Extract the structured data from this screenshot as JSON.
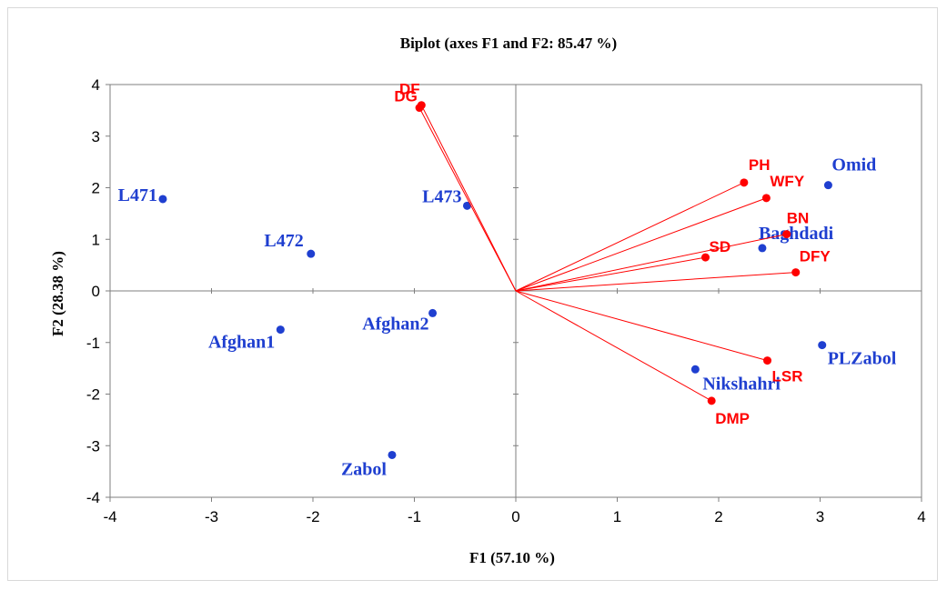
{
  "chart_data": {
    "type": "scatter",
    "title": "Biplot (axes F1 and F2: 85.47 %)",
    "xlabel": "F1 (57.10 %)",
    "ylabel": "F2 (28.38 %)",
    "xlim": [
      -4,
      4
    ],
    "ylim": [
      -4,
      4
    ],
    "x_ticks": [
      -4,
      -3,
      -2,
      -1,
      0,
      1,
      2,
      3,
      4
    ],
    "y_ticks": [
      -4,
      -3,
      -2,
      -1,
      0,
      1,
      2,
      3,
      4
    ],
    "grid": false,
    "colors": {
      "observations": "#1f3fd0",
      "variables": "#ff0000",
      "axes": "#7f7f7f"
    },
    "series": [
      {
        "kind": "observations",
        "points": [
          {
            "label": "L471",
            "x": -3.48,
            "y": 1.78
          },
          {
            "label": "L472",
            "x": -2.02,
            "y": 0.72
          },
          {
            "label": "L473",
            "x": -0.48,
            "y": 1.65
          },
          {
            "label": "Afghan1",
            "x": -2.32,
            "y": -0.75
          },
          {
            "label": "Afghan2",
            "x": -0.82,
            "y": -0.43
          },
          {
            "label": "Zabol",
            "x": -1.22,
            "y": -3.18
          },
          {
            "label": "Omid",
            "x": 3.08,
            "y": 2.05
          },
          {
            "label": "Baghdadi",
            "x": 2.43,
            "y": 0.83
          },
          {
            "label": "PLZabol",
            "x": 3.02,
            "y": -1.05
          },
          {
            "label": "Nikshahri",
            "x": 1.77,
            "y": -1.52
          }
        ]
      },
      {
        "kind": "variables",
        "points": [
          {
            "label": "DF",
            "x": -0.93,
            "y": 3.6
          },
          {
            "label": "DG",
            "x": -0.95,
            "y": 3.55
          },
          {
            "label": "PH",
            "x": 2.25,
            "y": 2.1
          },
          {
            "label": "WFY",
            "x": 2.47,
            "y": 1.8
          },
          {
            "label": "BN",
            "x": 2.67,
            "y": 1.1
          },
          {
            "label": "SD",
            "x": 1.87,
            "y": 0.65
          },
          {
            "label": "DFY",
            "x": 2.76,
            "y": 0.36
          },
          {
            "label": "LSR",
            "x": 2.48,
            "y": -1.35
          },
          {
            "label": "DMP",
            "x": 1.93,
            "y": -2.13
          }
        ]
      }
    ]
  }
}
